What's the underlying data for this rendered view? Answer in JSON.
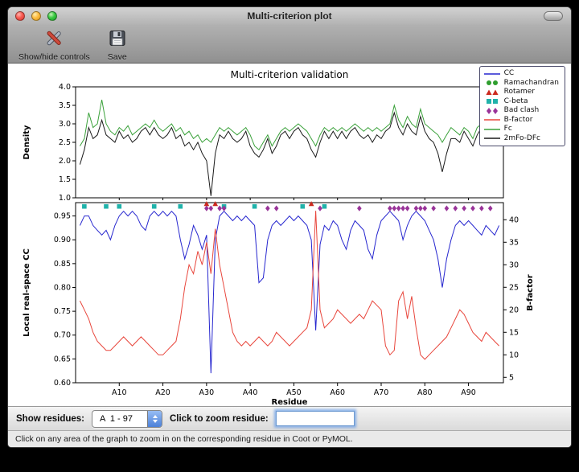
{
  "window": {
    "title": "Multi-criterion plot"
  },
  "toolbar": {
    "items": [
      {
        "label": "Show/hide controls"
      },
      {
        "label": "Save"
      }
    ]
  },
  "legend": [
    {
      "label": "CC",
      "type": "line",
      "color": "#2727cf"
    },
    {
      "label": "Ramachandran",
      "type": "circle",
      "color": "#2e9e2e"
    },
    {
      "label": "Rotamer",
      "type": "triangle",
      "color": "#cc2a1f"
    },
    {
      "label": "C-beta",
      "type": "square",
      "color": "#20b2aa"
    },
    {
      "label": "Bad clash",
      "type": "diamond",
      "color": "#993399"
    },
    {
      "label": "B-factor",
      "type": "line",
      "color": "#e8463c"
    },
    {
      "label": "Fc",
      "type": "line",
      "color": "#3aa13a"
    },
    {
      "label": "2mFo-DFc",
      "type": "line",
      "color": "#1a1a1a"
    }
  ],
  "chart_data": [
    {
      "type": "line",
      "title": "Multi-criterion validation",
      "ylabel": "Density",
      "ylim": [
        1.0,
        4.0
      ],
      "yticks": [
        1.0,
        1.5,
        2.0,
        2.5,
        3.0,
        3.5,
        4.0
      ],
      "series": [
        {
          "name": "Fc",
          "color": "#3aa13a",
          "values": [
            2.4,
            2.6,
            3.3,
            2.9,
            3.0,
            3.65,
            3.0,
            2.8,
            2.7,
            2.9,
            2.8,
            2.95,
            2.7,
            2.8,
            2.9,
            3.0,
            2.9,
            3.1,
            2.9,
            2.8,
            2.9,
            3.0,
            2.8,
            2.9,
            2.7,
            2.8,
            2.6,
            2.7,
            2.5,
            2.6,
            2.5,
            2.7,
            2.9,
            2.8,
            2.9,
            2.8,
            2.7,
            2.8,
            2.9,
            2.7,
            2.4,
            2.3,
            2.5,
            2.7,
            2.4,
            2.6,
            2.8,
            2.9,
            2.8,
            2.9,
            3.0,
            2.9,
            2.8,
            2.6,
            2.4,
            2.7,
            2.9,
            2.8,
            2.9,
            2.8,
            2.9,
            2.8,
            2.9,
            3.0,
            2.9,
            2.8,
            2.9,
            2.8,
            2.9,
            2.8,
            2.9,
            3.0,
            3.5,
            3.1,
            2.9,
            3.2,
            3.0,
            2.9,
            3.4,
            3.0,
            2.9,
            2.8,
            2.7,
            2.5,
            2.7,
            2.9,
            2.8,
            2.7,
            2.9,
            2.8,
            2.6,
            2.9,
            3.0,
            2.8,
            3.5,
            3.0,
            3.1
          ]
        },
        {
          "name": "2mFo-DFc",
          "color": "#1a1a1a",
          "values": [
            1.9,
            2.3,
            2.9,
            2.6,
            2.7,
            3.1,
            2.7,
            2.6,
            2.5,
            2.8,
            2.6,
            2.7,
            2.5,
            2.6,
            2.8,
            2.9,
            2.7,
            2.9,
            2.7,
            2.6,
            2.7,
            2.9,
            2.6,
            2.7,
            2.4,
            2.5,
            2.3,
            2.5,
            2.2,
            2.0,
            1.05,
            2.2,
            2.7,
            2.6,
            2.8,
            2.6,
            2.5,
            2.6,
            2.8,
            2.4,
            2.2,
            2.1,
            2.3,
            2.6,
            2.2,
            2.4,
            2.7,
            2.8,
            2.6,
            2.8,
            2.9,
            2.7,
            2.6,
            2.3,
            2.1,
            2.5,
            2.8,
            2.6,
            2.8,
            2.6,
            2.8,
            2.6,
            2.8,
            2.9,
            2.7,
            2.6,
            2.7,
            2.5,
            2.7,
            2.6,
            2.8,
            2.9,
            3.3,
            2.9,
            2.7,
            3.0,
            2.8,
            2.7,
            3.2,
            2.8,
            2.6,
            2.5,
            2.2,
            1.7,
            2.2,
            2.6,
            2.6,
            2.5,
            2.8,
            2.6,
            2.4,
            2.7,
            2.9,
            2.6,
            3.2,
            2.8,
            3.0
          ]
        }
      ]
    },
    {
      "type": "line",
      "xlabel": "Residue",
      "ylabel": "Local real-space CC",
      "y2label": "B-factor",
      "xlim": [
        0,
        98
      ],
      "xticks": [
        10,
        20,
        30,
        40,
        50,
        60,
        70,
        80,
        90
      ],
      "xtick_labels": [
        "A10",
        "A20",
        "A30",
        "A40",
        "A50",
        "A60",
        "A70",
        "A80",
        "A90"
      ],
      "ylim": [
        0.6,
        0.978
      ],
      "yticks": [
        0.6,
        0.65,
        0.7,
        0.75,
        0.8,
        0.85,
        0.9,
        0.95
      ],
      "y2lim": [
        3.8,
        43.8
      ],
      "y2ticks": [
        5,
        10,
        15,
        20,
        25,
        30,
        35,
        40
      ],
      "series": [
        {
          "name": "CC",
          "axis": "left",
          "color": "#2727cf",
          "values": [
            0.93,
            0.95,
            0.95,
            0.93,
            0.92,
            0.91,
            0.92,
            0.9,
            0.93,
            0.95,
            0.96,
            0.95,
            0.96,
            0.95,
            0.93,
            0.92,
            0.95,
            0.96,
            0.95,
            0.96,
            0.95,
            0.96,
            0.95,
            0.9,
            0.86,
            0.89,
            0.93,
            0.91,
            0.88,
            0.91,
            0.62,
            0.9,
            0.95,
            0.96,
            0.95,
            0.94,
            0.95,
            0.94,
            0.95,
            0.94,
            0.93,
            0.81,
            0.82,
            0.9,
            0.93,
            0.94,
            0.93,
            0.94,
            0.95,
            0.94,
            0.95,
            0.94,
            0.93,
            0.9,
            0.71,
            0.89,
            0.93,
            0.92,
            0.94,
            0.93,
            0.9,
            0.88,
            0.92,
            0.94,
            0.93,
            0.92,
            0.88,
            0.86,
            0.91,
            0.94,
            0.95,
            0.96,
            0.95,
            0.94,
            0.9,
            0.93,
            0.95,
            0.96,
            0.95,
            0.94,
            0.92,
            0.9,
            0.86,
            0.8,
            0.86,
            0.9,
            0.93,
            0.94,
            0.93,
            0.94,
            0.93,
            0.92,
            0.91,
            0.93,
            0.92,
            0.91,
            0.93
          ]
        },
        {
          "name": "B-factor",
          "axis": "right",
          "color": "#e8463c",
          "values": [
            22,
            20,
            18,
            15,
            13,
            12,
            11,
            11,
            12,
            13,
            14,
            13,
            12,
            13,
            14,
            13,
            12,
            11,
            10,
            10,
            11,
            12,
            13,
            18,
            25,
            30,
            28,
            33,
            30,
            35,
            28,
            38,
            30,
            25,
            20,
            15,
            13,
            12,
            13,
            12,
            13,
            14,
            13,
            12,
            13,
            15,
            14,
            13,
            12,
            13,
            14,
            15,
            16,
            20,
            42,
            20,
            16,
            17,
            18,
            20,
            19,
            18,
            17,
            18,
            19,
            18,
            20,
            22,
            21,
            20,
            12,
            10,
            11,
            22,
            24,
            18,
            23,
            16,
            10,
            9,
            10,
            11,
            12,
            13,
            14,
            16,
            18,
            20,
            19,
            17,
            15,
            14,
            13,
            15,
            14,
            13,
            12
          ]
        }
      ],
      "markers": [
        {
          "name": "Rotamer",
          "shape": "triangle",
          "color": "#cc2a1f",
          "y": 0.9755,
          "x": [
            30,
            32,
            54
          ]
        },
        {
          "name": "C-beta",
          "shape": "square",
          "color": "#20b2aa",
          "y": 0.97,
          "x": [
            2,
            7,
            10,
            18,
            24,
            34,
            41,
            52,
            57
          ]
        },
        {
          "name": "Bad clash",
          "shape": "diamond",
          "color": "#993399",
          "y": 0.966,
          "x": [
            30,
            31,
            33,
            34,
            44,
            46,
            56,
            65,
            72,
            73,
            74,
            75,
            76,
            78,
            79,
            80,
            82,
            85,
            87,
            89,
            91,
            93,
            95
          ]
        }
      ]
    }
  ],
  "controls": {
    "show_residues_label": "Show residues:",
    "residue_range_value": "A  1 - 97",
    "zoom_label": "Click to zoom residue:",
    "zoom_input_value": ""
  },
  "status": "Click on any area of the graph to zoom in on the corresponding residue in Coot or PyMOL."
}
